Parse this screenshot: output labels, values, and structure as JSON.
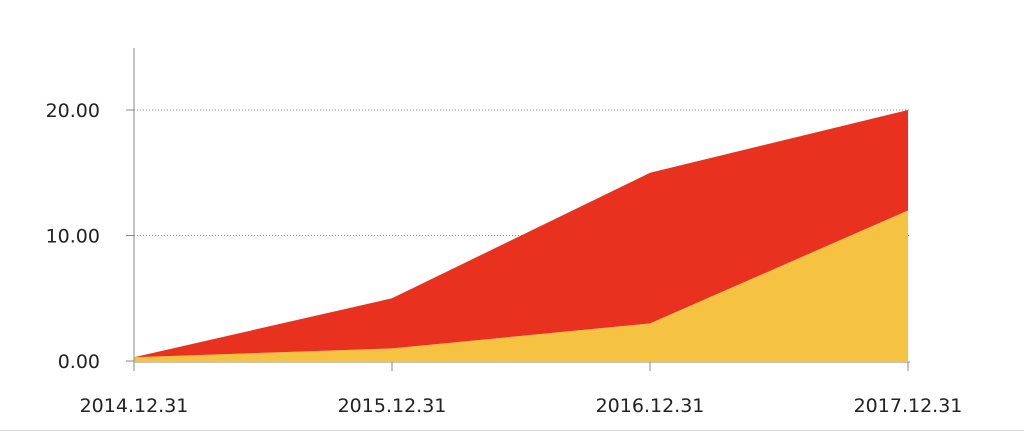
{
  "chart_data": {
    "type": "area",
    "stacked": true,
    "x": [
      "2014.12.31",
      "2015.12.31",
      "2016.12.31",
      "2017.12.31"
    ],
    "series": [
      {
        "color": "#f5c242",
        "values": [
          0.3,
          1.0,
          3.0,
          12.0
        ]
      },
      {
        "color": "#e8321f",
        "values": [
          0.0,
          4.0,
          12.0,
          8.0
        ]
      }
    ],
    "yticks": [
      "0.00",
      "10.00",
      "20.00"
    ],
    "ylim": [
      0,
      25
    ],
    "grid": true
  }
}
